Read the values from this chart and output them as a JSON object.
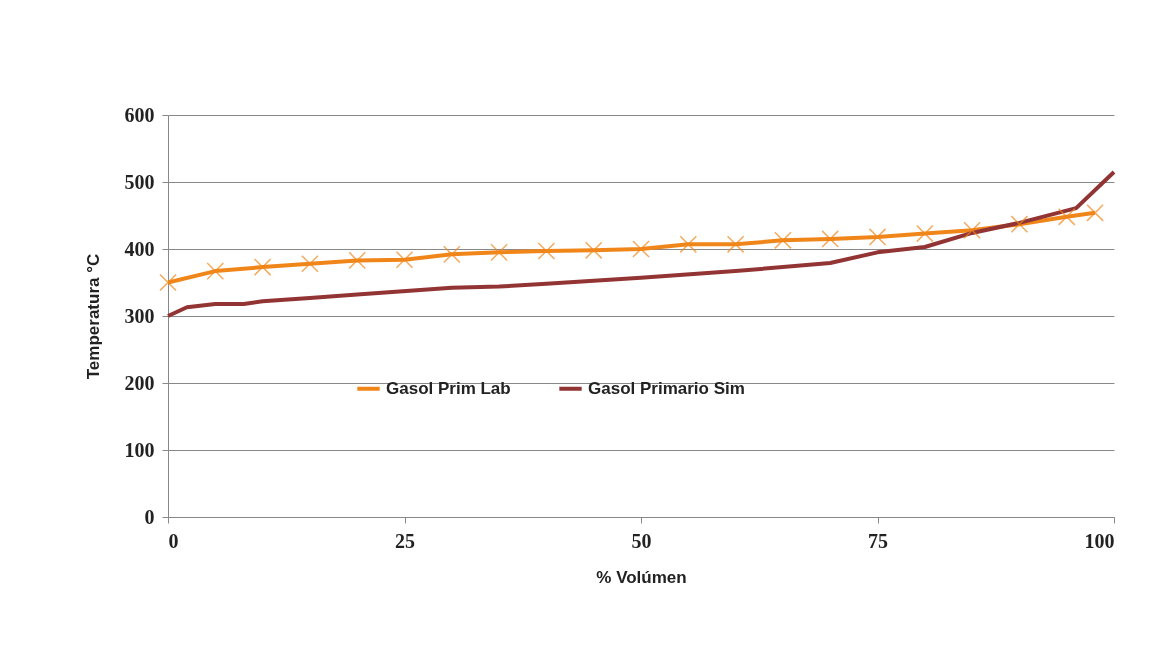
{
  "chart_data": {
    "type": "line",
    "xlabel": "% Volúmen",
    "ylabel": "Temperatura °C",
    "xlim": [
      0,
      100
    ],
    "xticks": [
      0,
      25,
      50,
      75,
      100
    ],
    "ylim": [
      0,
      600
    ],
    "yticks": [
      0,
      100,
      200,
      300,
      400,
      500,
      600
    ],
    "grid": "y",
    "legend": "bottom",
    "line_style": "solid",
    "series": [
      {
        "name": "Gasol Prim Lab",
        "color": "#f0861a",
        "marker": "cross",
        "x": [
          0,
          5,
          10,
          15,
          20,
          25,
          30,
          35,
          40,
          45,
          50,
          55,
          60,
          65,
          70,
          75,
          80,
          85,
          90,
          95,
          98
        ],
        "values": [
          350,
          367,
          373,
          378,
          383,
          384,
          392,
          395,
          397,
          398,
          400,
          407,
          407,
          413,
          415,
          418,
          423,
          428,
          437,
          448,
          454
        ]
      },
      {
        "name": "Gasol Primario Sim",
        "color": "#933434",
        "marker": "none",
        "x": [
          0,
          2,
          5,
          8,
          10,
          15,
          20,
          30,
          35,
          40,
          50,
          60,
          70,
          75,
          80,
          85,
          90,
          96,
          100
        ],
        "values": [
          300,
          313,
          318,
          318,
          322,
          327,
          332,
          342,
          344,
          348,
          357,
          367,
          379,
          395,
          403,
          424,
          439,
          461,
          515
        ]
      }
    ]
  }
}
